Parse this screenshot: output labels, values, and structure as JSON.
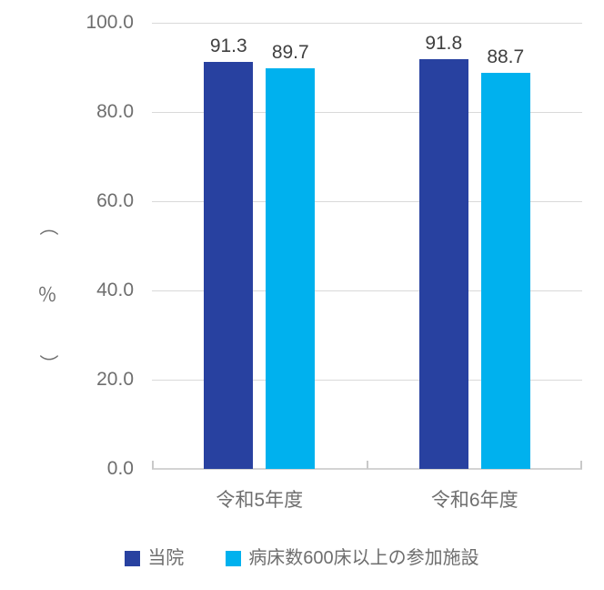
{
  "y_axis_title": {
    "text": "（％）",
    "parts": [
      "（",
      "％",
      "）"
    ]
  },
  "chart_data": {
    "type": "bar",
    "categories": [
      "令和5年度",
      "令和6年度"
    ],
    "series": [
      {
        "name": "当院",
        "color": "#2841A0",
        "values": [
          91.3,
          91.8
        ]
      },
      {
        "name": "病床数600床以上の参加施設",
        "color": "#00B1EE",
        "values": [
          89.7,
          88.7
        ]
      }
    ],
    "data_labels": [
      [
        "91.3",
        "91.8"
      ],
      [
        "89.7",
        "88.7"
      ]
    ],
    "ylabel": "（％）",
    "ylim": [
      0,
      100
    ],
    "ytick_interval": 20,
    "ytick_labels": [
      "100.0",
      "80.0",
      "60.0",
      "40.0",
      "20.0",
      "0.0"
    ],
    "grid": true,
    "legend_position": "bottom"
  },
  "colors": {
    "background": "#FFFFFF",
    "gridline": "#D9D9D9",
    "axis_line": "#D3D3D3",
    "axis_tick": "#C9C9C9",
    "y_tick_label": "#6E6E6E",
    "data_label": "#404040",
    "category_label": "#6E6E6E",
    "legend_text": "#6E6E6E",
    "series_1": "#2841A0",
    "series_2": "#00B1EE"
  }
}
